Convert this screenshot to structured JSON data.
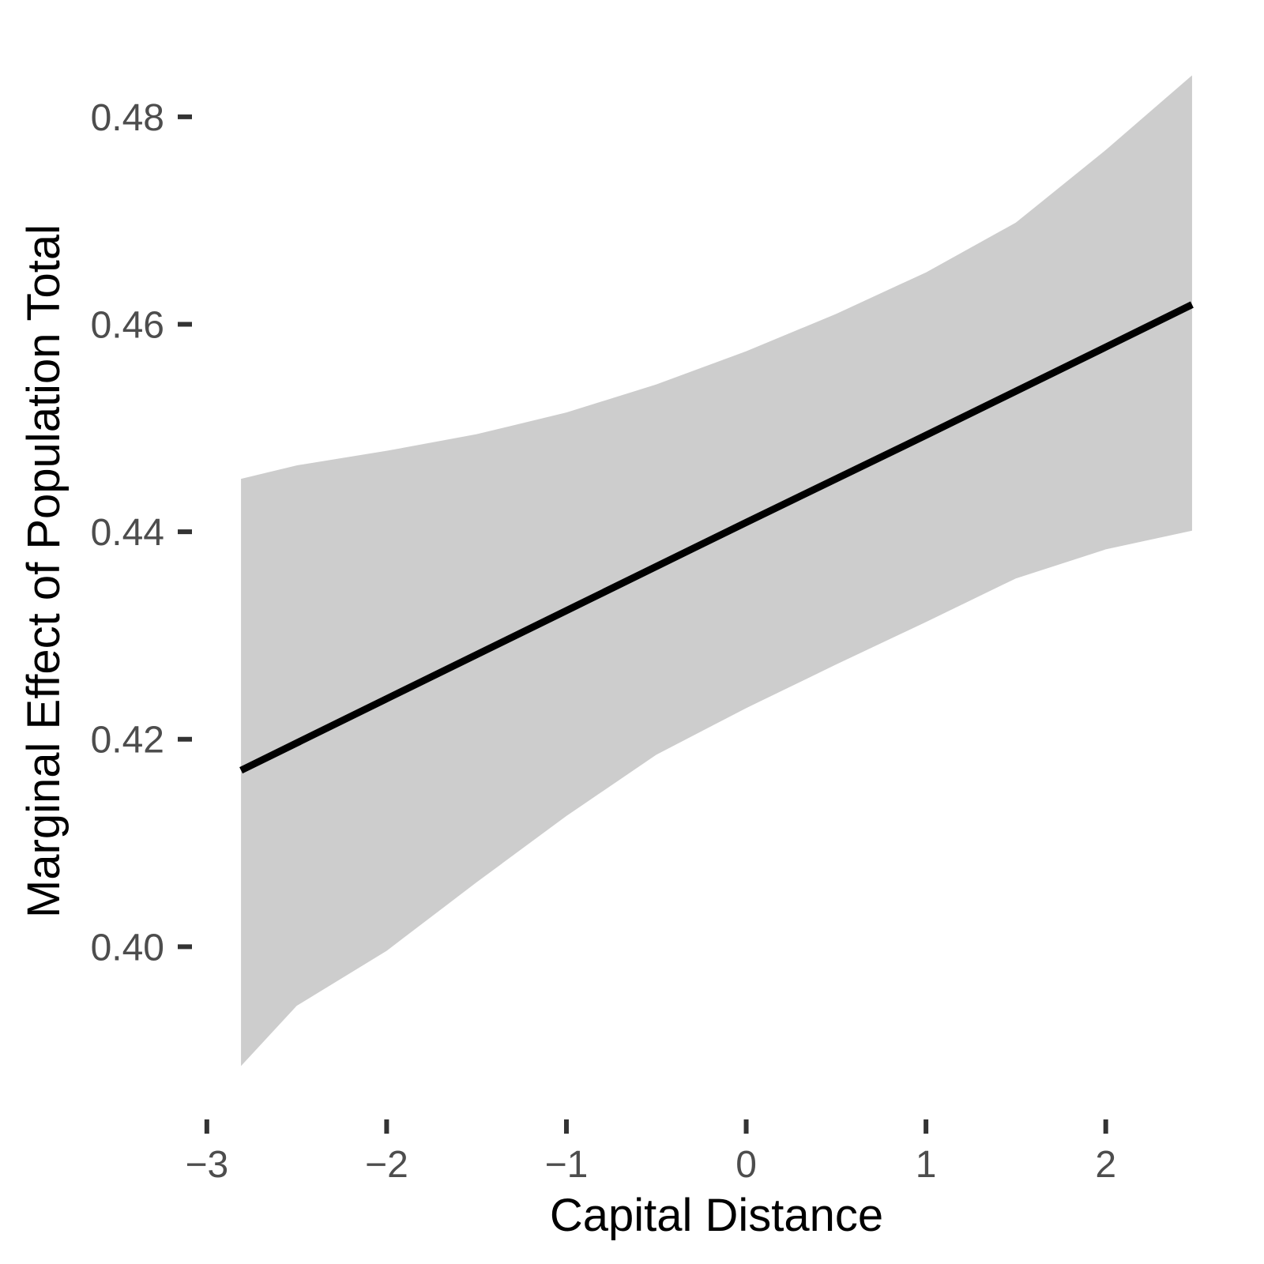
{
  "chart_data": {
    "type": "line",
    "title": "",
    "xlabel": "Capital Distance",
    "ylabel": "Marginal Effect of Population Total",
    "grid": false,
    "legend_position": "none",
    "xlim": [
      -3.074,
      2.744
    ],
    "ylim": [
      0.3835,
      0.4889
    ],
    "x_ticks": {
      "values": [
        -3,
        -2,
        -1,
        0,
        1,
        2
      ],
      "labels": [
        "−3",
        "−2",
        "−1",
        "0",
        "1",
        "2"
      ]
    },
    "y_ticks": {
      "values": [
        0.4,
        0.42,
        0.44,
        0.46,
        0.48
      ],
      "labels": [
        "0.40",
        "0.42",
        "0.44",
        "0.46",
        "0.48"
      ]
    },
    "series": [
      {
        "name": "marginal-effect-line",
        "x": [
          -2.81,
          -2.0,
          -1.0,
          0.0,
          1.0,
          2.0,
          2.48
        ],
        "y": [
          0.417,
          0.4239,
          0.4324,
          0.4409,
          0.4493,
          0.4578,
          0.4619
        ]
      }
    ],
    "ribbon": {
      "name": "confidence-band",
      "x": [
        -2.81,
        -2.5,
        -2.0,
        -1.5,
        -1.0,
        -0.5,
        0.0,
        0.5,
        1.0,
        1.5,
        2.0,
        2.48
      ],
      "upper": [
        0.4451,
        0.4464,
        0.4478,
        0.4494,
        0.4515,
        0.4542,
        0.4574,
        0.461,
        0.465,
        0.4698,
        0.4768,
        0.484
      ],
      "lower": [
        0.3885,
        0.3943,
        0.3996,
        0.4062,
        0.4126,
        0.4185,
        0.423,
        0.4272,
        0.4313,
        0.4355,
        0.4383,
        0.4401
      ]
    },
    "colors": {
      "line": "#000000",
      "ribbon": "#cdcdcd",
      "tick_mark": "#333333",
      "tick_label": "#4d4d4d",
      "axis_title": "#000000",
      "background": "#ffffff"
    }
  }
}
